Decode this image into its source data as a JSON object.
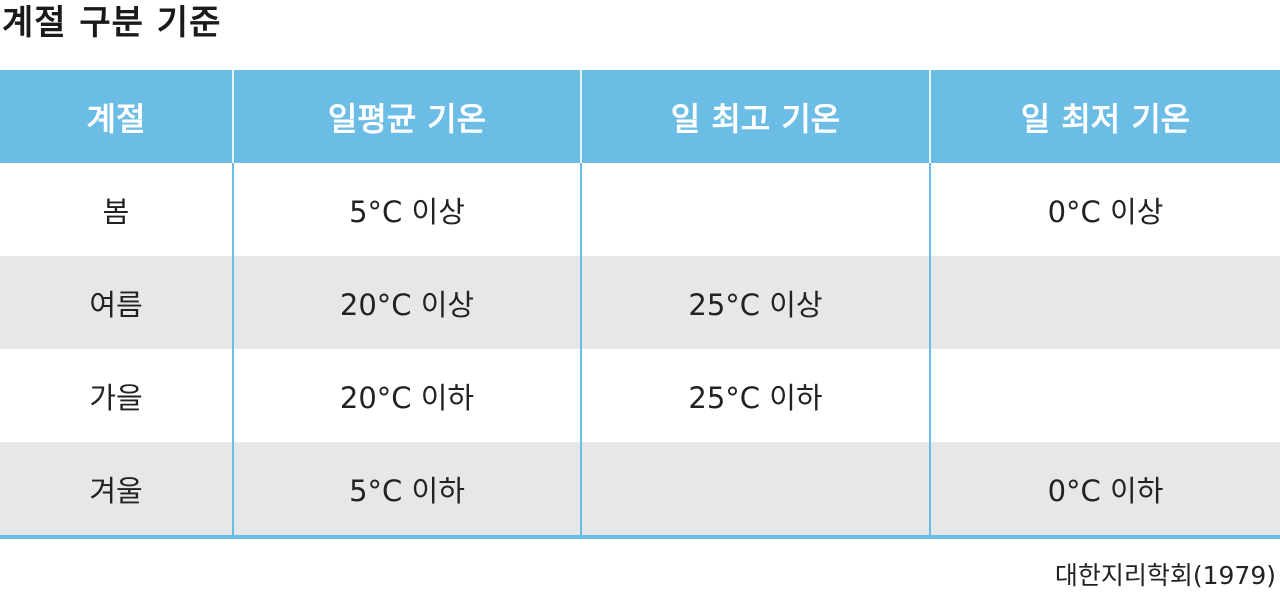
{
  "title": "계절 구분 기준",
  "table": {
    "headers": [
      "계절",
      "일평균 기온",
      "일 최고 기온",
      "일 최저 기온"
    ],
    "rows": [
      [
        "봄",
        "5°C 이상",
        "",
        "0°C 이상"
      ],
      [
        "여름",
        "20°C 이상",
        "25°C 이상",
        ""
      ],
      [
        "가을",
        "20°C 이하",
        "25°C 이하",
        ""
      ],
      [
        "겨울",
        "5°C 이하",
        "",
        "0°C 이하"
      ]
    ]
  },
  "source": "대한지리학회(1979)",
  "colors": {
    "header": "#6cbde6",
    "stripe": "#e6e7e9"
  }
}
